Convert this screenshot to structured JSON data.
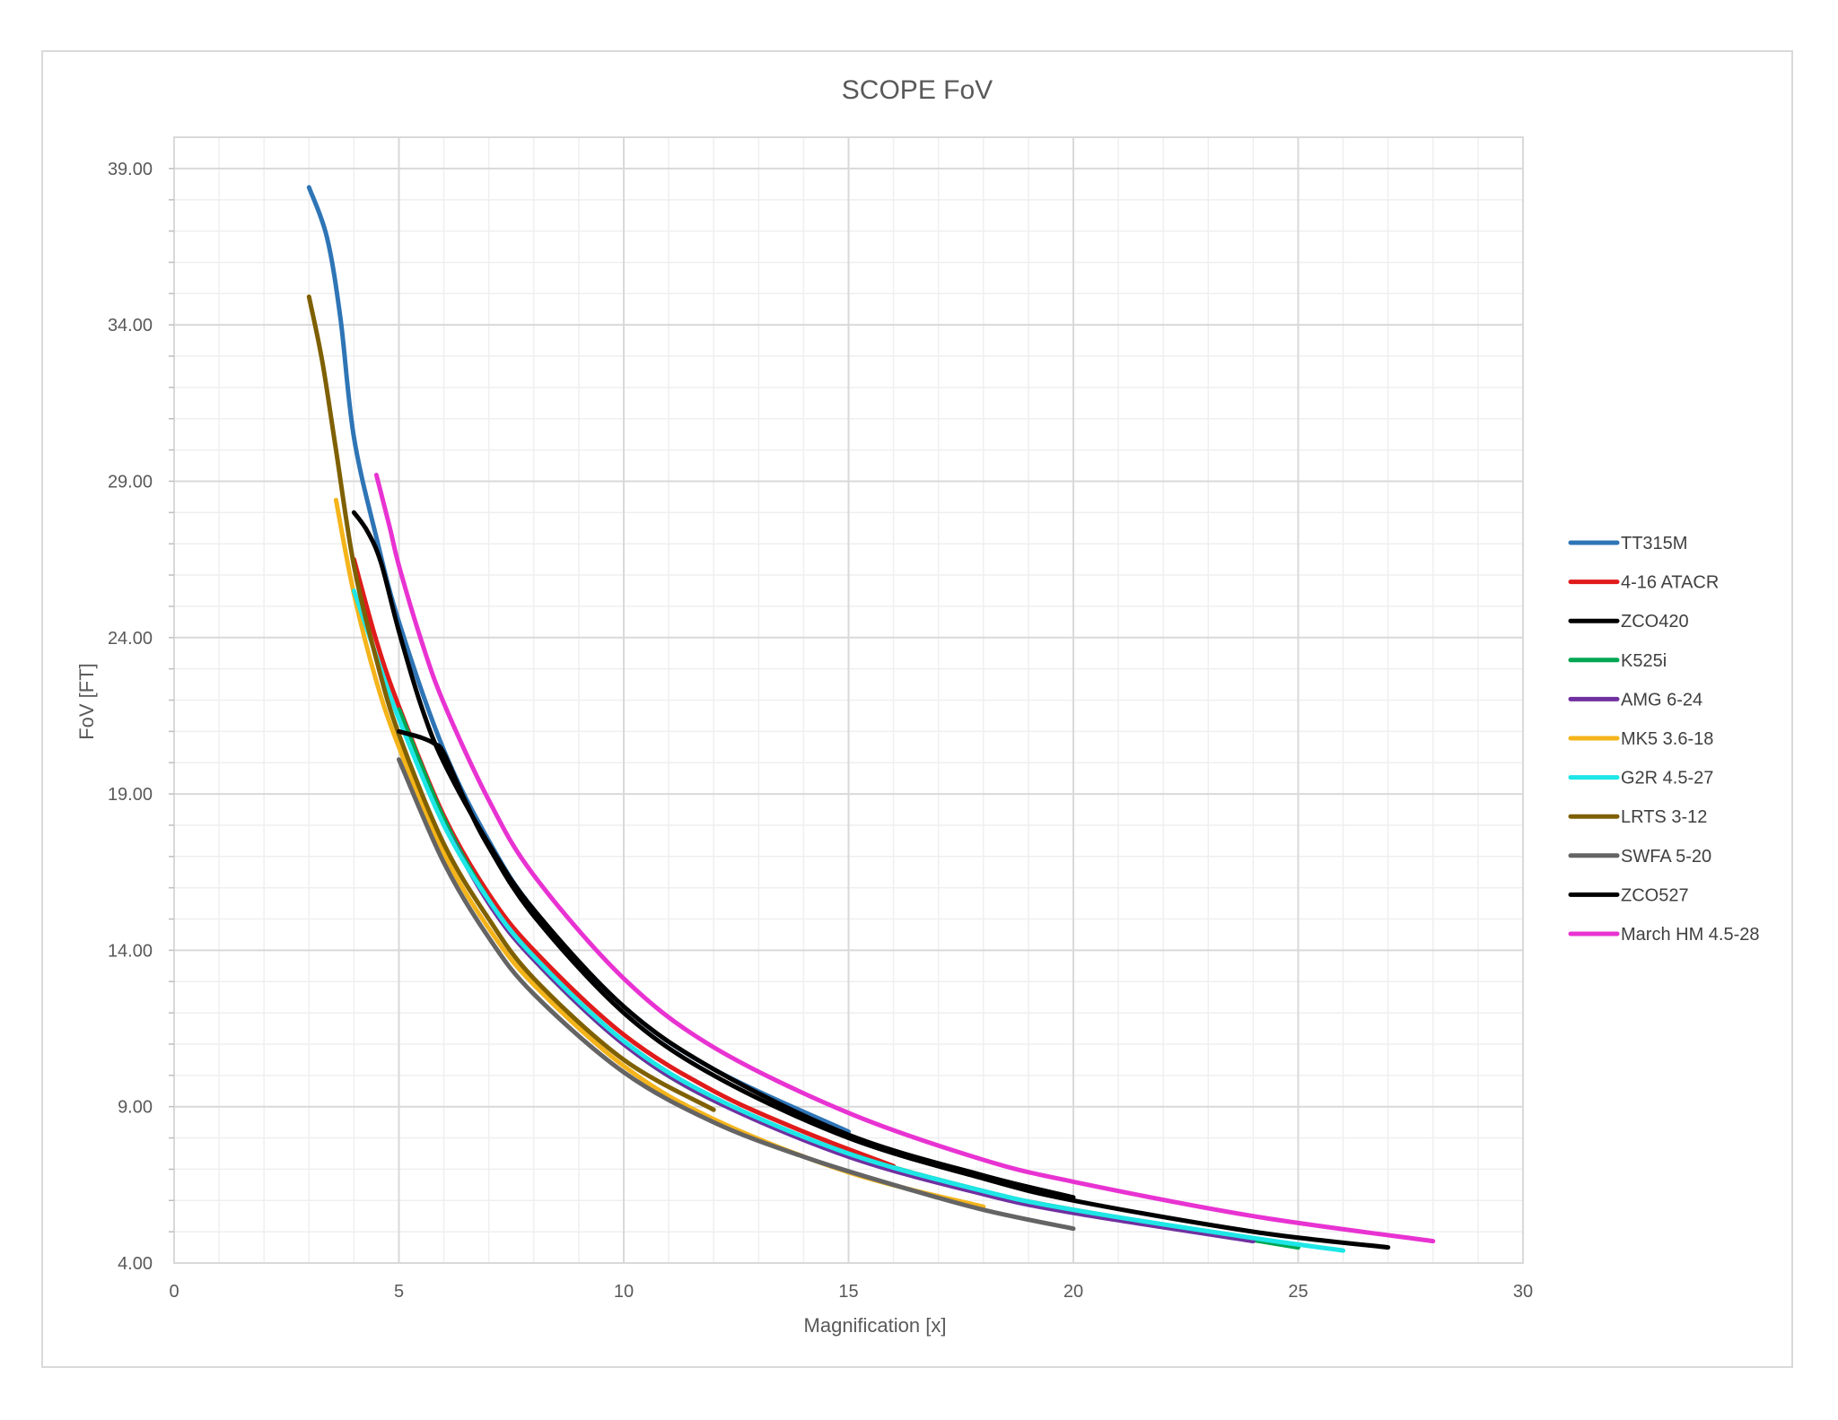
{
  "chart_data": {
    "type": "line",
    "title": "SCOPE FoV",
    "xlabel": "Magnification [x]",
    "ylabel": "FoV [FT]",
    "xlim": [
      0,
      30
    ],
    "ylim": [
      4,
      40
    ],
    "x_ticks": [
      0,
      5,
      10,
      15,
      20,
      25,
      30
    ],
    "x_tick_labels": [
      "0",
      "5",
      "10",
      "15",
      "20",
      "25",
      "30"
    ],
    "y_ticks": [
      4,
      9,
      14,
      19,
      24,
      29,
      34,
      39
    ],
    "y_tick_labels": [
      "4.00",
      "9.00",
      "14.00",
      "19.00",
      "24.00",
      "29.00",
      "34.00",
      "39.00"
    ],
    "grid": true,
    "legend_position": "right",
    "series": [
      {
        "name": "TT315M",
        "color": "#2E75B6",
        "x": [
          3,
          3.4,
          3.7,
          4,
          4.5,
          5,
          6,
          7,
          8,
          10,
          12,
          15
        ],
        "y": [
          38.4,
          36.8,
          34.2,
          30.4,
          27.2,
          24.5,
          20.4,
          17.5,
          15.3,
          12.2,
          10.2,
          8.2
        ]
      },
      {
        "name": "4-16 ATACR",
        "color": "#E01B1B",
        "x": [
          4,
          4.5,
          5,
          6,
          7,
          8,
          10,
          12,
          14,
          16
        ],
        "y": [
          26.5,
          23.9,
          21.8,
          18.3,
          15.8,
          14.0,
          11.3,
          9.5,
          8.2,
          7.1
        ]
      },
      {
        "name": "ZCO420",
        "color": "#000000",
        "x": [
          4,
          4.3,
          4.6,
          5,
          5.5,
          6,
          7,
          8,
          10,
          12,
          15,
          18,
          20
        ],
        "y": [
          28.0,
          27.4,
          26.4,
          24.2,
          21.8,
          20.0,
          17.4,
          15.3,
          12.2,
          10.2,
          8.1,
          6.8,
          6.1
        ]
      },
      {
        "name": "K525i",
        "color": "#00A651",
        "x": [
          5,
          6,
          7,
          8,
          10,
          12,
          15,
          18,
          20,
          25
        ],
        "y": [
          21.7,
          18.2,
          15.6,
          13.7,
          11.0,
          9.2,
          7.5,
          6.3,
          5.7,
          4.5
        ]
      },
      {
        "name": "AMG 6-24",
        "color": "#7030A0",
        "x": [
          6,
          7,
          8,
          10,
          12,
          15,
          18,
          20,
          24
        ],
        "y": [
          18.0,
          15.5,
          13.7,
          11.0,
          9.2,
          7.4,
          6.2,
          5.6,
          4.7
        ]
      },
      {
        "name": "MK5 3.6-18",
        "color": "#F4B41A",
        "x": [
          3.6,
          4,
          4.5,
          5,
          6,
          7,
          8,
          10,
          12,
          15,
          18
        ],
        "y": [
          28.4,
          25.4,
          22.6,
          20.5,
          17.1,
          14.7,
          12.9,
          10.3,
          8.6,
          6.9,
          5.8
        ]
      },
      {
        "name": "G2R 4.5-27",
        "color": "#1EE6E6",
        "x": [
          4,
          4.5,
          5,
          6,
          7,
          8,
          10,
          12,
          15,
          18,
          20,
          24,
          26
        ],
        "y": [
          25.5,
          23.4,
          21.4,
          18.0,
          15.6,
          13.8,
          11.1,
          9.3,
          7.5,
          6.3,
          5.7,
          4.8,
          4.4
        ]
      },
      {
        "name": "LRTS 3-12",
        "color": "#7F6000",
        "x": [
          3,
          3.3,
          3.6,
          4,
          4.5,
          5,
          6,
          7,
          8,
          10,
          12
        ],
        "y": [
          34.9,
          32.8,
          30.0,
          26.3,
          23.3,
          20.9,
          17.4,
          15.0,
          13.1,
          10.5,
          8.9
        ]
      },
      {
        "name": "SWFA 5-20",
        "color": "#646464",
        "x": [
          5,
          6,
          7,
          8,
          10,
          12,
          14,
          16,
          18,
          20
        ],
        "y": [
          20.1,
          16.8,
          14.4,
          12.6,
          10.1,
          8.5,
          7.4,
          6.5,
          5.7,
          5.1
        ]
      },
      {
        "name": "ZCO527",
        "color": "#000000",
        "x": [
          5,
          5.5,
          5.8,
          6,
          6.5,
          7,
          8,
          10,
          12,
          15,
          18,
          20,
          24,
          27
        ],
        "y": [
          21.0,
          20.8,
          20.6,
          20.3,
          18.7,
          17.3,
          15.1,
          12.0,
          10.0,
          8.0,
          6.7,
          6.0,
          5.0,
          4.5
        ]
      },
      {
        "name": "March HM 4.5-28",
        "color": "#E833D2",
        "x": [
          4.5,
          4.8,
          5,
          5.5,
          6,
          7,
          8,
          10,
          12,
          15,
          18,
          20,
          24,
          28
        ],
        "y": [
          29.2,
          27.5,
          26.3,
          23.9,
          21.9,
          18.8,
          16.4,
          13.1,
          10.9,
          8.8,
          7.3,
          6.6,
          5.5,
          4.7
        ]
      }
    ]
  }
}
